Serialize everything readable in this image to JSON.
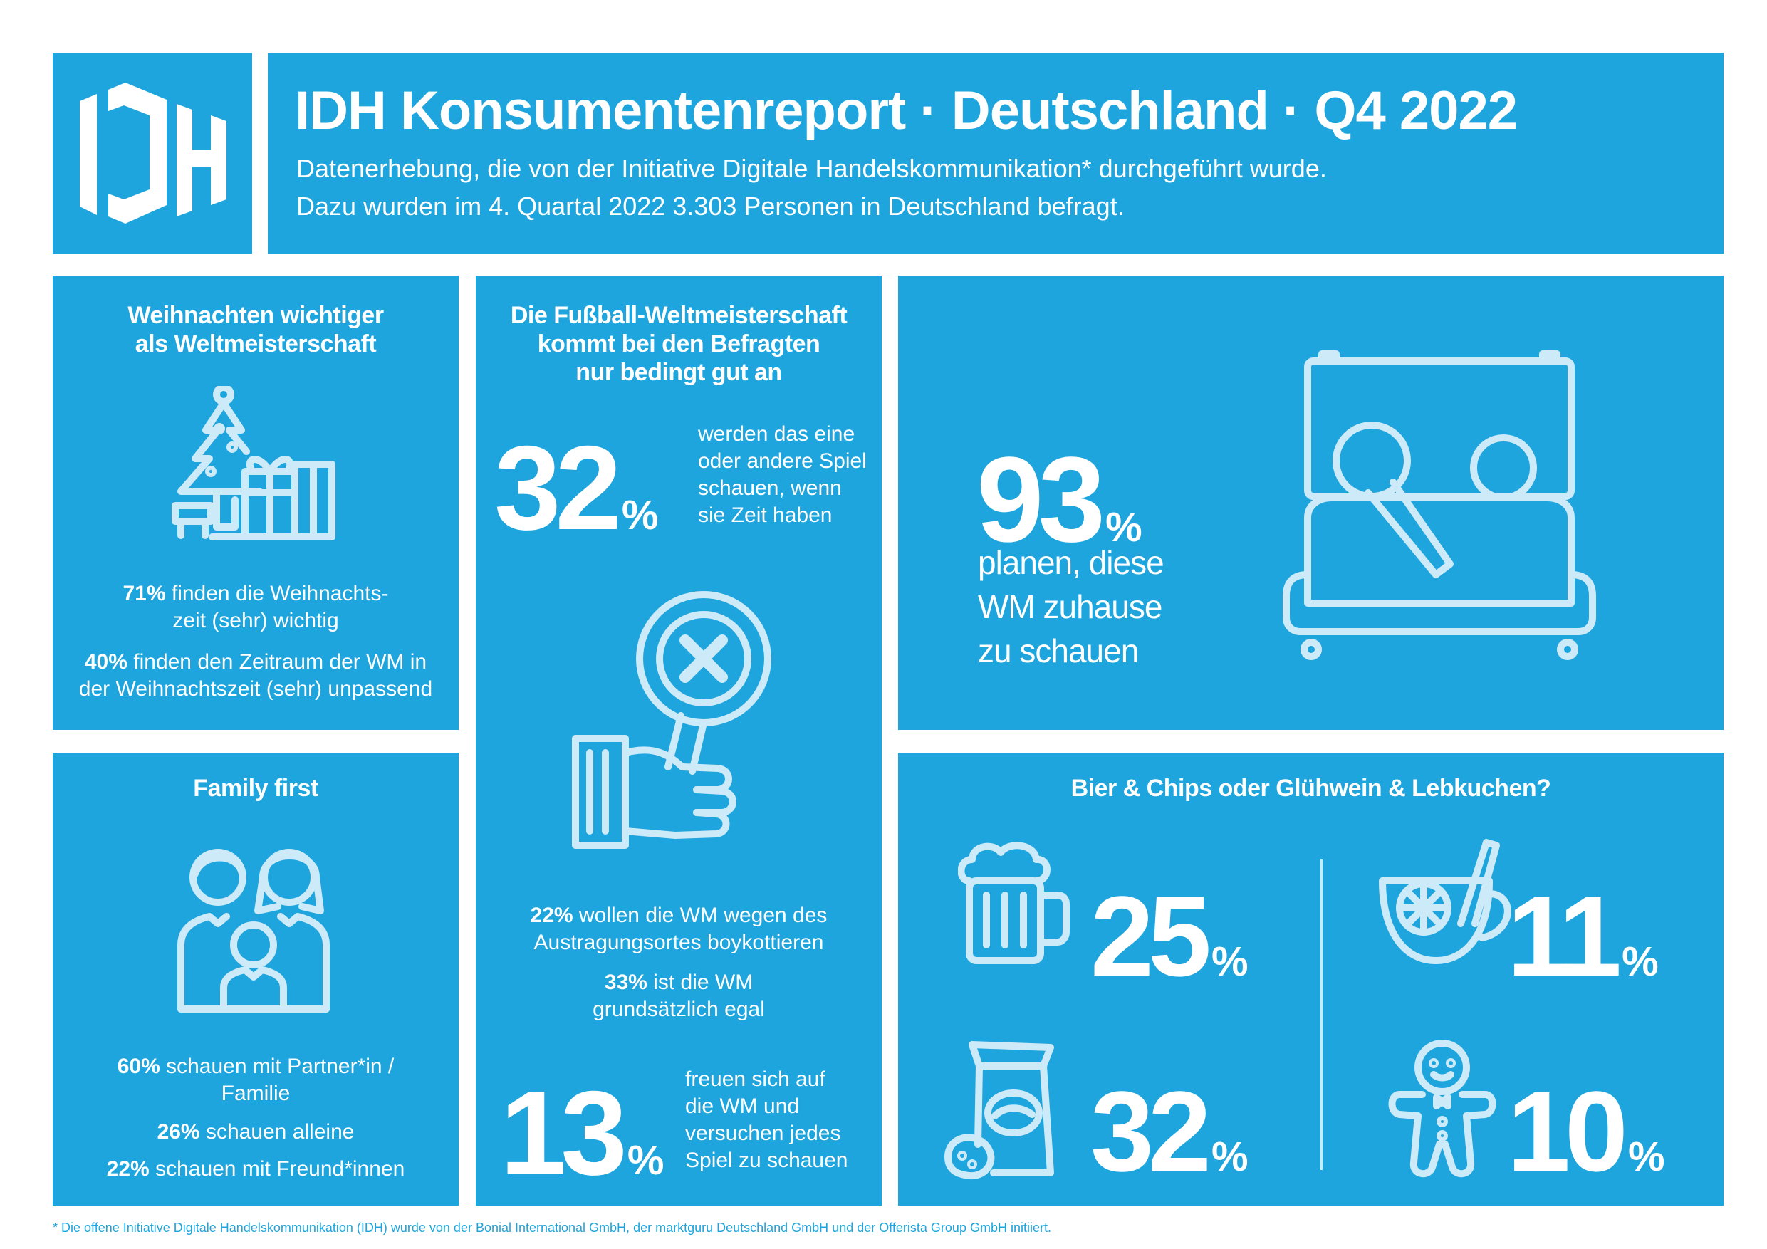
{
  "header": {
    "logo_text": "IDH",
    "title": "IDH Konsumentenreport · Deutschland · Q4 2022",
    "subtitle_line1": "Datenerhebung, die von der Initiative Digitale Handelskommunikation* durchgeführt wurde.",
    "subtitle_line2": "Dazu wurden im 4. Quartal 2022 3.303 Personen in Deutschland befragt."
  },
  "christmas": {
    "title_line1": "Weihnachten wichtiger",
    "title_line2": "als Weltmeisterschaft",
    "icon": "christmas-tree-gifts-icon",
    "stat1_value": "71%",
    "stat1_text_line1": " finden die Weihnachts-",
    "stat1_text_line2": "zeit (sehr) wichtig",
    "stat2_value": "40%",
    "stat2_text_line1": " finden den Zeitraum der WM in",
    "stat2_text_line2": "der Weihnachtszeit (sehr) unpassend"
  },
  "worldcup": {
    "title_line1": "Die Fußball-Weltmeisterschaft",
    "title_line2": "kommt bei den Befragten",
    "title_line3": "nur bedingt gut an",
    "big1_value": "32",
    "big1_unit": "%",
    "big1_text": [
      "werden das eine",
      "oder andere Spiel",
      "schauen, wenn",
      "sie Zeit haben"
    ],
    "icon": "hand-reject-sign-icon",
    "stat1_value": "22%",
    "stat1_text_line1": " wollen die WM wegen des",
    "stat1_text_line2": "Austragungsortes boykottieren",
    "stat2_value": "33%",
    "stat2_text_line1": " ist die WM",
    "stat2_text_line2": "grundsätzlich egal",
    "big2_value": "13",
    "big2_unit": "%",
    "big2_text": [
      "freuen sich auf",
      "die WM und",
      "versuchen jedes",
      "Spiel zu schauen"
    ]
  },
  "home": {
    "big_value": "93",
    "big_unit": "%",
    "text": [
      "planen, diese",
      "WM zuhause",
      "zu schauen"
    ],
    "icon": "couch-tv-viewers-icon"
  },
  "family": {
    "title": "Family first",
    "icon": "family-icon",
    "stat1_value": "60%",
    "stat1_text_line1": " schauen mit Partner*in /",
    "stat1_text_line2": "Familie",
    "stat2_value": "26%",
    "stat2_text": " schauen alleine",
    "stat3_value": "22%",
    "stat3_text": " schauen mit Freund*innen"
  },
  "snacks": {
    "title": "Bier & Chips oder Glühwein & Lebkuchen?",
    "beer_value": "25",
    "beer_unit": "%",
    "beer_icon": "beer-mug-icon",
    "mulled_value": "11",
    "mulled_unit": "%",
    "mulled_icon": "mulled-wine-icon",
    "chips_value": "32",
    "chips_unit": "%",
    "chips_icon": "chips-bag-icon",
    "gingerbread_value": "10",
    "gingerbread_unit": "%",
    "gingerbread_icon": "gingerbread-man-icon"
  },
  "footnote": "* Die offene Initiative Digitale Handelskommunikation (IDH) wurde von der Bonial International GmbH, der marktguru Deutschland GmbH und der Offerista Group GmbH initiiert.",
  "colors": {
    "brand_blue": "#1ea5dd",
    "icon_stroke": "#cdeaf8",
    "text": "#ffffff"
  }
}
